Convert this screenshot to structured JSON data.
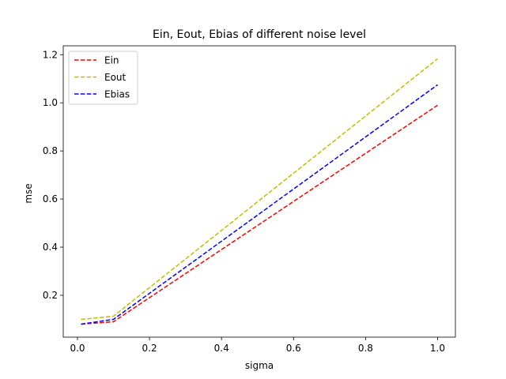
{
  "chart_data": {
    "type": "line",
    "title": "Ein, Eout, Ebias of different noise level",
    "xlabel": "sigma",
    "ylabel": "mse",
    "x": [
      0.01,
      0.1,
      1.0
    ],
    "xlim": [
      -0.0395,
      1.0495
    ],
    "ylim": [
      0.026,
      1.237
    ],
    "xticks": [
      0.0,
      0.2,
      0.4,
      0.6,
      0.8,
      1.0
    ],
    "xtick_labels": [
      "0.0",
      "0.2",
      "0.4",
      "0.6",
      "0.8",
      "1.0"
    ],
    "yticks": [
      0.2,
      0.4,
      0.6,
      0.8,
      1.0,
      1.2
    ],
    "ytick_labels": [
      "0.2",
      "0.4",
      "0.6",
      "0.8",
      "1.0",
      "1.2"
    ],
    "grid": false,
    "legend_position": "top-left",
    "series": [
      {
        "name": "Ein",
        "color": "#ff0000",
        "dash": "dashed",
        "values": [
          0.08,
          0.09,
          0.99
        ]
      },
      {
        "name": "Eout",
        "color": "#bfbf00",
        "dash": "dashed",
        "values": [
          0.1,
          0.113,
          1.183
        ]
      },
      {
        "name": "Ebias",
        "color": "#0000ff",
        "dash": "dashed",
        "values": [
          0.08,
          0.1,
          1.075
        ]
      }
    ]
  }
}
